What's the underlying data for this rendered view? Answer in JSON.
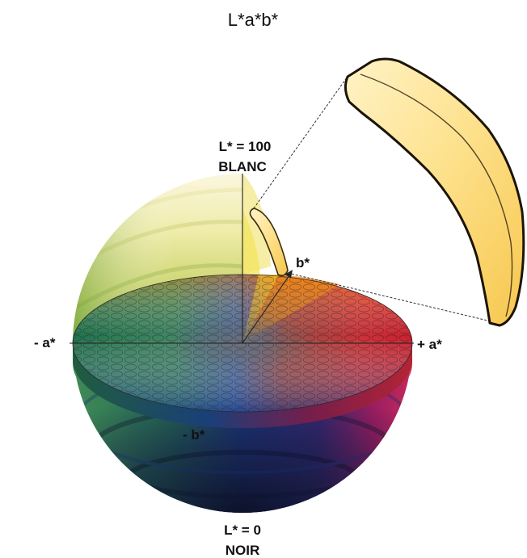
{
  "title": "L*a*b*",
  "labels": {
    "l_top": "L* = 100",
    "white": "BLANC",
    "l_bottom": "L* = 0",
    "black": "NOIR",
    "neg_a": "- a*",
    "pos_a": "+ a*",
    "neg_b": "- b*",
    "pos_b": "b*"
  },
  "colors": {
    "yellow": "#f3e27a",
    "red": "#d62a2a",
    "magenta": "#b01a6a",
    "blue": "#1e3c9a",
    "green": "#2f7a44",
    "navy": "#141a38",
    "banana": "#fbd56a"
  }
}
